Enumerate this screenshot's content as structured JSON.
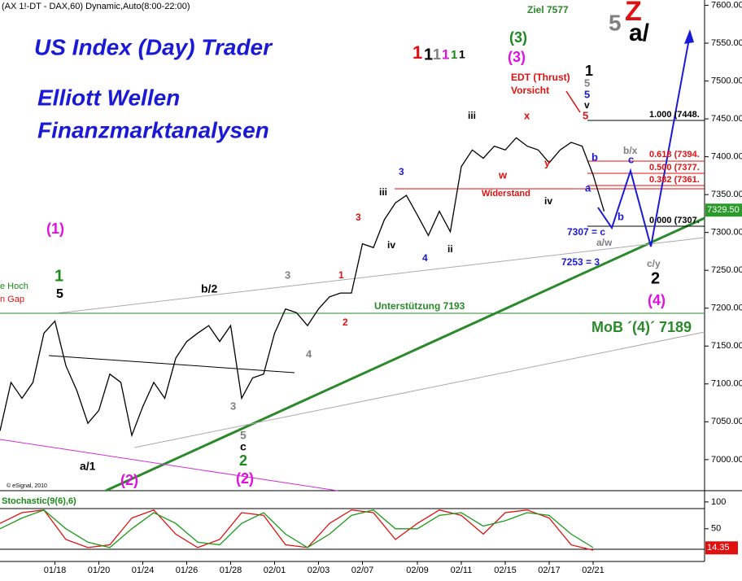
{
  "chart_data": [
    {
      "type": "line",
      "header": "(AX 1!-DT - DAX,60) Dynamic,Auto(8:00-22:00)",
      "categories": [
        null,
        null,
        null,
        null,
        null,
        "01/18",
        null,
        null,
        null,
        "01/20",
        null,
        null,
        null,
        "01/24",
        null,
        null,
        null,
        "01/26",
        null,
        null,
        null,
        "01/28",
        null,
        null,
        null,
        "02/01",
        null,
        null,
        null,
        "02/03",
        null,
        null,
        null,
        "02/07",
        null,
        null,
        null,
        null,
        "02/09",
        null,
        null,
        null,
        "02/11",
        null,
        null,
        null,
        "02/15",
        null,
        null,
        null,
        "02/17",
        null,
        null,
        null,
        "02/21",
        null
      ],
      "values": [
        7038,
        7102,
        7081,
        7102,
        7167,
        7183,
        7124,
        7091,
        7048,
        7065,
        7113,
        7102,
        7032,
        7070,
        7102,
        7081,
        7134,
        7156,
        7167,
        7177,
        7156,
        7177,
        7081,
        7108,
        7113,
        7167,
        7199,
        7194,
        7177,
        7199,
        7215,
        7220,
        7220,
        7285,
        7280,
        7317,
        7339,
        7349,
        7323,
        7296,
        7328,
        7301,
        7387,
        7409,
        7398,
        7414,
        7409,
        7425,
        7414,
        7409,
        7392,
        7409,
        7419,
        7414,
        7376,
        7328
      ],
      "color": "#000000",
      "ylim": [
        6959,
        7607
      ],
      "yticks": [
        {
          "value": 7000,
          "label": "7000.00"
        },
        {
          "value": 7050,
          "label": "7050.00"
        },
        {
          "value": 7100,
          "label": "7100.00"
        },
        {
          "value": 7150,
          "label": "7150.00"
        },
        {
          "value": 7200,
          "label": "7200.00"
        },
        {
          "value": 7250,
          "label": "7250.00"
        },
        {
          "value": 7300,
          "label": "7300.00"
        },
        {
          "value": 7350,
          "label": "7350.00"
        },
        {
          "value": 7400,
          "label": "7400.00"
        },
        {
          "value": 7450,
          "label": "7450.00"
        },
        {
          "value": 7500,
          "label": "7500.00"
        },
        {
          "value": 7550,
          "label": "7550.00"
        },
        {
          "value": 7600,
          "label": "7600.00"
        }
      ],
      "last_value": 7329.5,
      "last_value_label": "7329.50",
      "annotations": [
        "US Index (Day) Trader",
        "Elliott Wellen",
        "Finanzmarktanalysen",
        "Ziel 7577",
        "EDT (Thrust)",
        "Vorsicht",
        "Widerstand",
        "Unterstützung 7193",
        "MoB ´(4)´ 7189",
        "1.000 (7448.",
        "0.618 (7394.",
        "0.500 (7377.",
        "0.382 (7361.",
        "0.000 (7307.",
        "7307 = c",
        "7253 = 3",
        "a/w",
        "b/x",
        "c/y",
        "(1)",
        "(2)",
        "(2)",
        "(3)",
        "(3)",
        "(4)",
        "1",
        "5",
        "a/1",
        "b/2",
        "c",
        "2",
        "1",
        "2",
        "iii",
        "iii",
        "iv",
        "ii",
        "iv",
        "Stochastic(9(6),6)",
        "© eSignal, 2010",
        "e Hoch",
        "n Gap",
        "5",
        "Z",
        "a/",
        "1",
        "1",
        "1",
        "1",
        "1",
        "1",
        "5",
        "5",
        "v",
        "5",
        "b",
        "a",
        "b",
        "c",
        "x",
        "w",
        "y",
        "3",
        "4",
        "3",
        "5",
        "2",
        "1",
        "3",
        "3",
        "4"
      ]
    },
    {
      "type": "line",
      "series": [
        {
          "color": "#e01010",
          "values": [
            60,
            80,
            85,
            30,
            15,
            20,
            70,
            85,
            40,
            15,
            30,
            80,
            75,
            20,
            15,
            60,
            85,
            80,
            30,
            60,
            85,
            75,
            40,
            80,
            85,
            70,
            20,
            10
          ]
        },
        {
          "color": "#1a9a1a",
          "values": [
            50,
            70,
            85,
            50,
            25,
            15,
            50,
            80,
            60,
            25,
            20,
            60,
            80,
            40,
            15,
            40,
            75,
            85,
            50,
            50,
            75,
            80,
            55,
            65,
            80,
            75,
            40,
            15
          ]
        }
      ],
      "ylim": [
        -11,
        118
      ],
      "yticks": [
        50,
        100
      ],
      "last_value": 14.35,
      "last_value_label": "14.35"
    }
  ]
}
